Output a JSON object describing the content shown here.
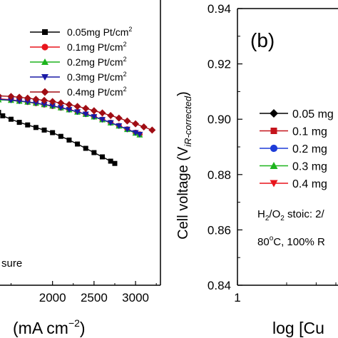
{
  "chart_data": [
    {
      "type": "line",
      "xlabel": "(mA cm",
      "xlabel_sup": "−2",
      "xlabel_close": ")",
      "x_ticks": [
        2000,
        2500,
        3000
      ],
      "xlim": [
        1350,
        3300
      ],
      "ylim": [
        0,
        1
      ],
      "legend_position": "top-right",
      "annotation": "sure",
      "series": [
        {
          "name": "0.05mg Pt/cm",
          "name_sup": "2",
          "color": "#000000",
          "marker": "square",
          "x": [
            1350,
            1400,
            1500,
            1600,
            1700,
            1800,
            1900,
            2000,
            2100,
            2200,
            2300,
            2400,
            2500,
            2600,
            2700,
            2750
          ],
          "y": [
            0.606,
            0.594,
            0.582,
            0.571,
            0.562,
            0.553,
            0.544,
            0.535,
            0.522,
            0.509,
            0.495,
            0.48,
            0.465,
            0.45,
            0.435,
            0.427
          ]
        },
        {
          "name": "0.1mg Pt/cm",
          "name_sup": "2",
          "color": "#e8141c",
          "marker": "circle",
          "x": [
            1350,
            1500,
            1600,
            1700,
            1800,
            1900,
            2000,
            2100,
            2200,
            2300,
            2400,
            2500,
            2600,
            2700,
            2800,
            2900,
            3000,
            3050
          ],
          "y": [
            0.654,
            0.65,
            0.646,
            0.642,
            0.638,
            0.633,
            0.628,
            0.622,
            0.616,
            0.608,
            0.6,
            0.591,
            0.581,
            0.57,
            0.559,
            0.547,
            0.535,
            0.529
          ]
        },
        {
          "name": "0.2mg Pt/cm",
          "name_sup": "2",
          "color": "#1db41d",
          "marker": "triangle-up",
          "x": [
            1350,
            1500,
            1600,
            1700,
            1800,
            1900,
            2000,
            2100,
            2200,
            2300,
            2400,
            2500,
            2600,
            2700,
            2800,
            2900,
            3000,
            3050
          ],
          "y": [
            0.65,
            0.648,
            0.645,
            0.642,
            0.638,
            0.633,
            0.628,
            0.622,
            0.615,
            0.607,
            0.599,
            0.59,
            0.58,
            0.569,
            0.558,
            0.546,
            0.533,
            0.527
          ]
        },
        {
          "name": "0.3mg Pt/cm",
          "name_sup": "2",
          "color": "#1a1aa6",
          "marker": "triangle-down",
          "x": [
            1350,
            1500,
            1600,
            1700,
            1800,
            1900,
            2000,
            2100,
            2200,
            2300,
            2400,
            2500,
            2600,
            2700,
            2800,
            2900,
            3000,
            3050
          ],
          "y": [
            0.652,
            0.649,
            0.646,
            0.643,
            0.639,
            0.634,
            0.629,
            0.623,
            0.616,
            0.608,
            0.6,
            0.591,
            0.581,
            0.57,
            0.559,
            0.547,
            0.535,
            0.529
          ]
        },
        {
          "name": "0.4mg Pt/cm",
          "name_sup": "2",
          "color": "#a00d14",
          "marker": "diamond",
          "x": [
            1350,
            1500,
            1600,
            1700,
            1800,
            1900,
            2000,
            2100,
            2200,
            2300,
            2400,
            2500,
            2600,
            2700,
            2800,
            2900,
            3000,
            3100,
            3200
          ],
          "y": [
            0.664,
            0.662,
            0.659,
            0.656,
            0.652,
            0.648,
            0.644,
            0.639,
            0.633,
            0.627,
            0.62,
            0.612,
            0.604,
            0.595,
            0.586,
            0.576,
            0.566,
            0.555,
            0.544
          ]
        }
      ]
    },
    {
      "type": "line",
      "panel_label": "(b)",
      "ylabel": "Cell voltage (V",
      "ylabel_sub": "iR-corrected",
      "ylabel_close": ")",
      "xlabel": "log [Cu",
      "y_ticks": [
        "0.84",
        "0.86",
        "0.88",
        "0.90",
        "0.92",
        "0.94"
      ],
      "ylim": [
        0.84,
        0.94
      ],
      "x_ticks": [
        "1"
      ],
      "legend_position": "center-right",
      "legend": [
        {
          "name": "0.05 mg",
          "color": "#000000",
          "marker": "diamond"
        },
        {
          "name": "0.1 mg",
          "color": "#c4141c",
          "marker": "square"
        },
        {
          "name": "0.2 mg",
          "color": "#1e3cd8",
          "marker": "circle"
        },
        {
          "name": "0.3 mg",
          "color": "#1db41d",
          "marker": "triangle-up"
        },
        {
          "name": "0.4 mg",
          "color": "#e8141c",
          "marker": "triangle-down"
        }
      ],
      "annotation_line1": {
        "a": "H",
        "s1": "2",
        "b": "/O",
        "s2": "2",
        "c": " stoic: 2/"
      },
      "annotation_line2": {
        "a": "80",
        "s1": "o",
        "b": "C, 100% R"
      }
    }
  ]
}
